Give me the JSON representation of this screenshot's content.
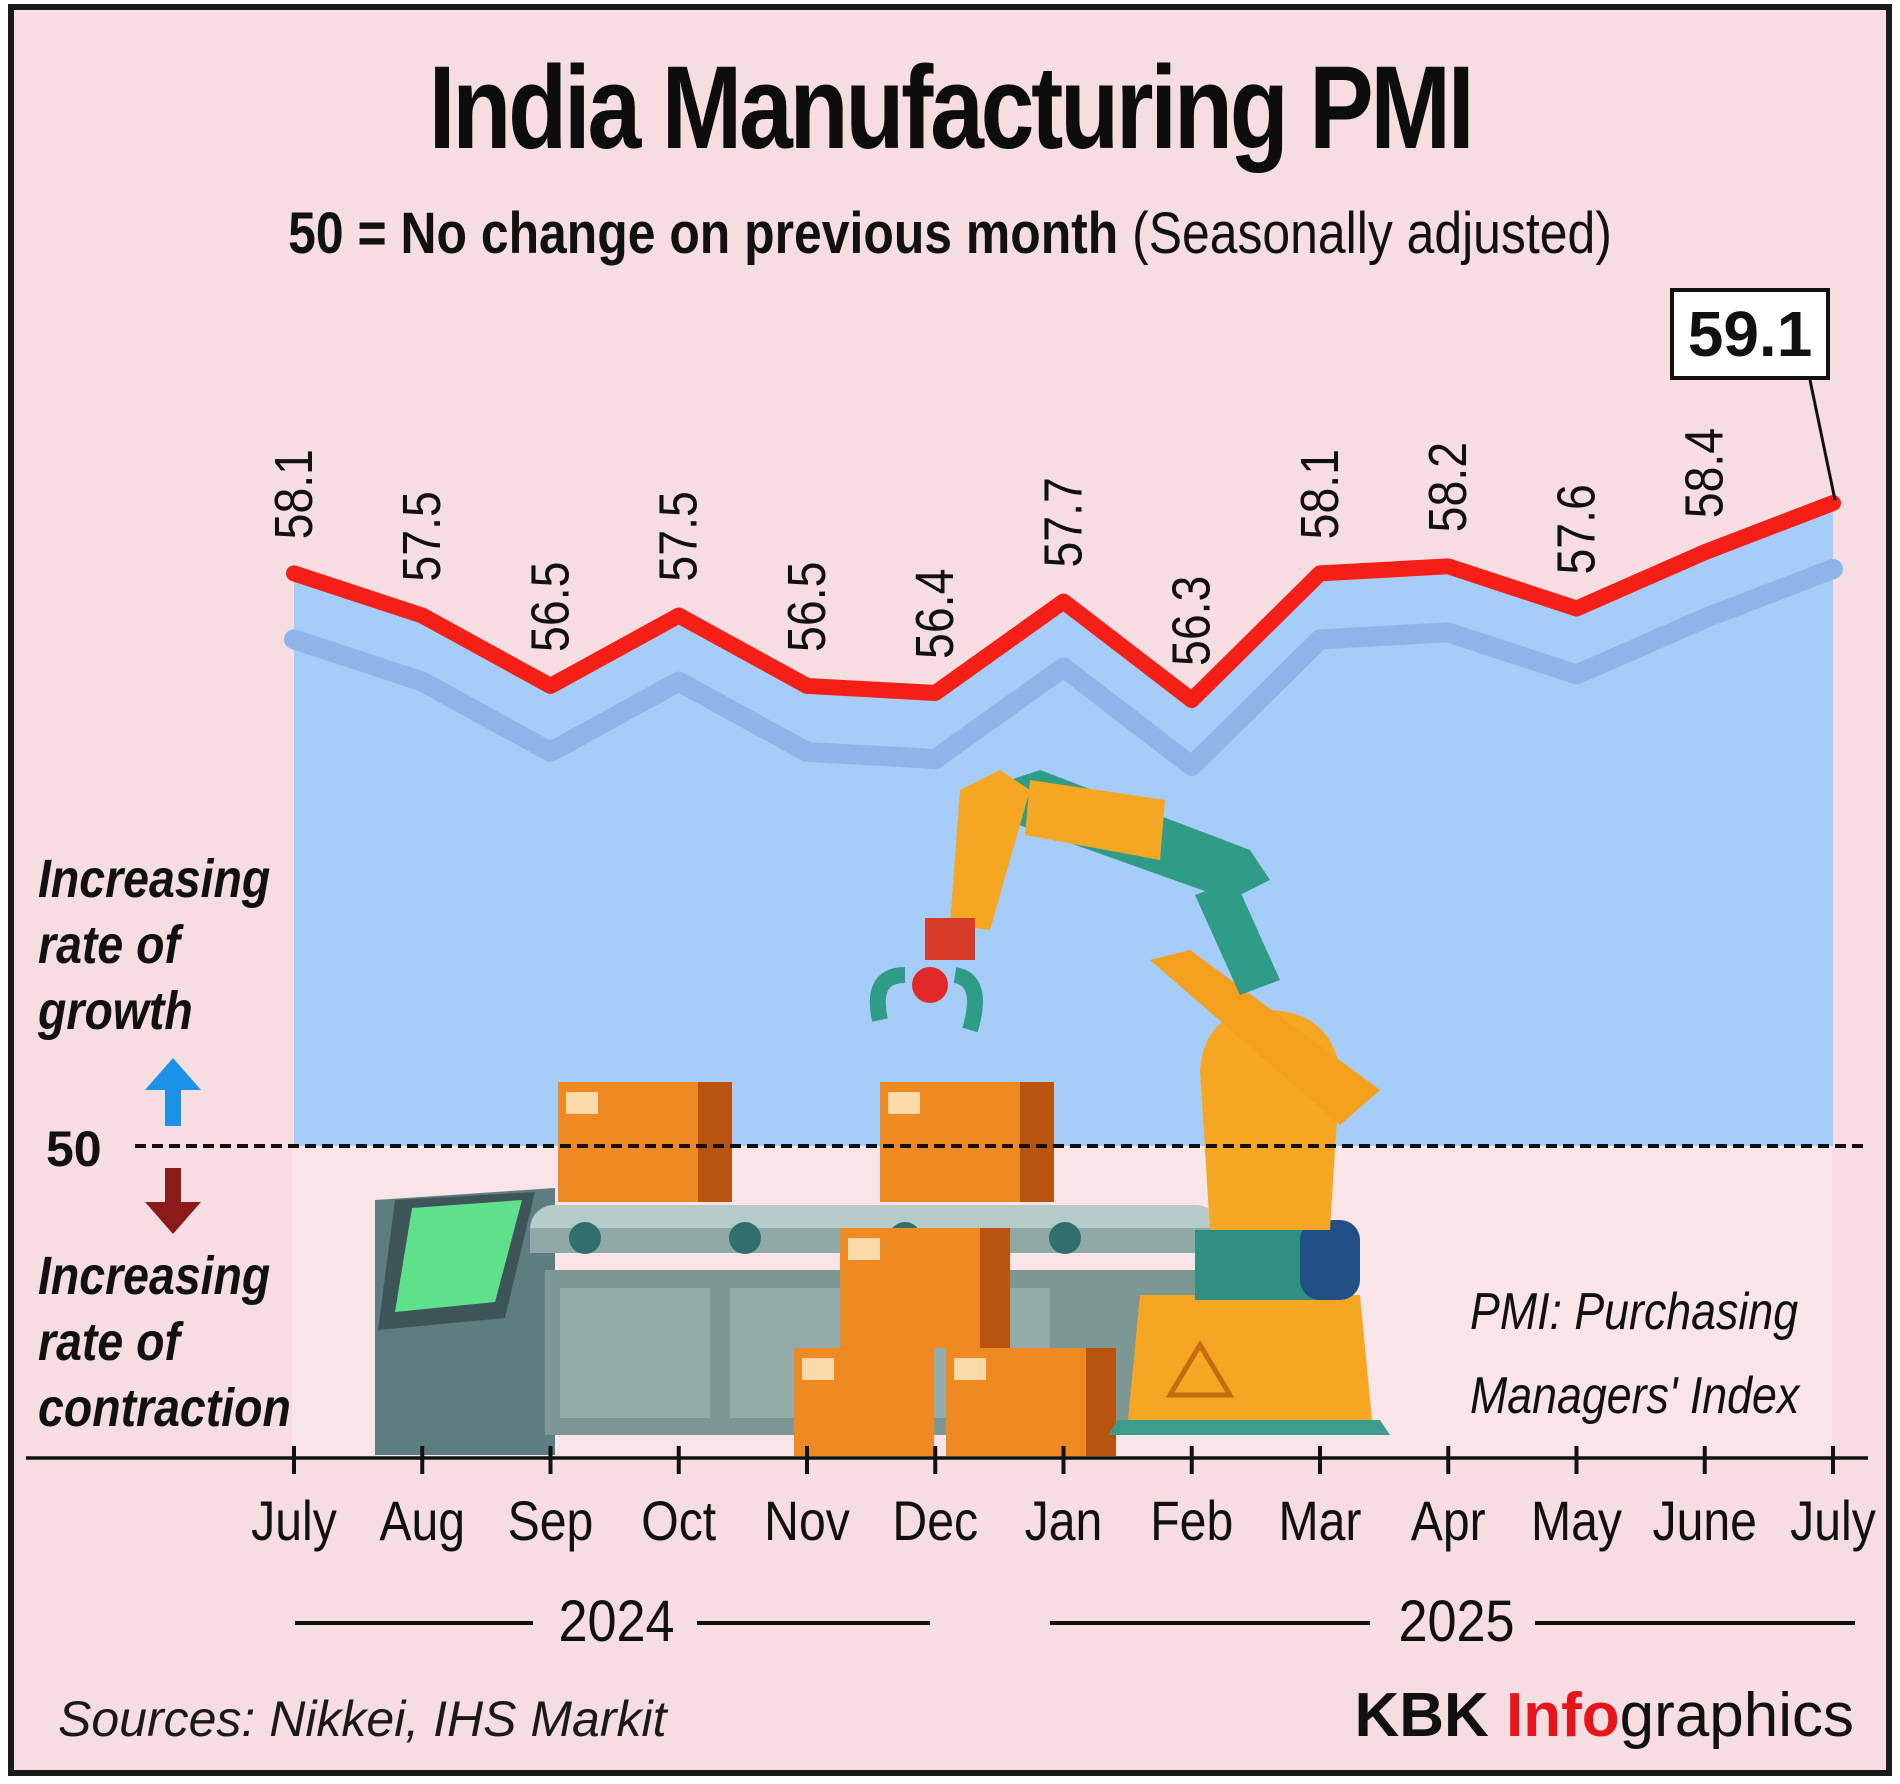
{
  "title": "India Manufacturing PMI",
  "subtitle_bold": "50 = No change on previous month",
  "subtitle_normal": "(Seasonally adjusted)",
  "side_labels": {
    "growth": [
      "Increasing",
      "rate of",
      "growth"
    ],
    "contraction": [
      "Increasing",
      "rate of",
      "contraction"
    ],
    "baseline": "50"
  },
  "note": [
    "PMI: Purchasing",
    "Managers' Index"
  ],
  "years": [
    "2024",
    "2025"
  ],
  "source": "Sources: Nikkei, IHS Markit",
  "brand": {
    "part1": "KBK ",
    "part2": "Info",
    "part3": "graphics"
  },
  "callout": "59.1",
  "colors": {
    "background": "#f5dde1",
    "area": "#a6cdf8",
    "line": "#f41f16",
    "up_arrow": "#1a92e8",
    "down_arrow": "#8b1a1a",
    "brand_accent": "#e8141c"
  },
  "chart_data": {
    "type": "line",
    "title": "India Manufacturing PMI",
    "categories": [
      "July",
      "Aug",
      "Sep",
      "Oct",
      "Nov",
      "Dec",
      "Jan",
      "Feb",
      "Mar",
      "Apr",
      "May",
      "June",
      "July"
    ],
    "values": [
      58.1,
      57.5,
      56.5,
      57.5,
      56.5,
      56.4,
      57.7,
      56.3,
      58.1,
      58.2,
      57.6,
      58.4,
      59.1
    ],
    "value_labels": [
      "58.1",
      "57.5",
      "56.5",
      "57.5",
      "56.5",
      "56.4",
      "57.7",
      "56.3",
      "58.1",
      "58.2",
      "57.6",
      "58.4",
      "59.1"
    ],
    "reference_line": 50,
    "year_groups": [
      {
        "label": "2024",
        "months": [
          "July",
          "Aug",
          "Sep",
          "Oct",
          "Nov",
          "Dec"
        ]
      },
      {
        "label": "2025",
        "months": [
          "Jan",
          "Feb",
          "Mar",
          "Apr",
          "May",
          "June",
          "July"
        ]
      }
    ],
    "grid": false,
    "legend": "none"
  }
}
